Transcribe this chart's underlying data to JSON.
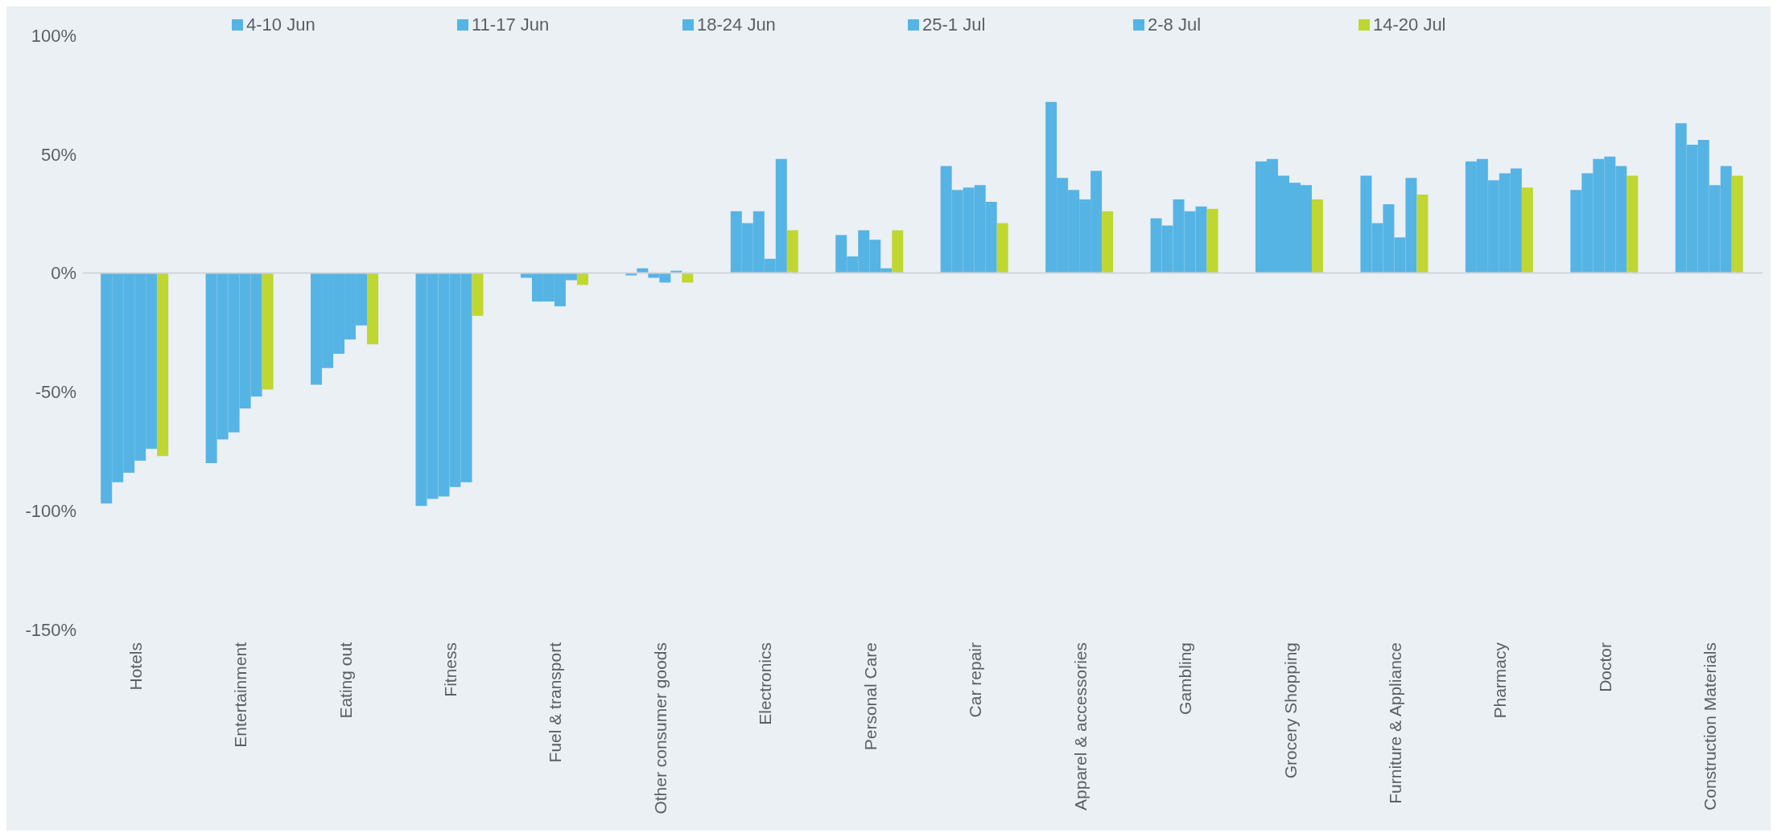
{
  "chart_data": {
    "type": "bar",
    "categories": [
      "Hotels",
      "Entertainment",
      "Eating out",
      "Fitness",
      "Fuel & transport",
      "Other consumer goods",
      "Electronics",
      "Personal Care",
      "Car repair",
      "Apparel & accessories",
      "Gambling",
      "Grocery Shopping",
      "Furniture & Appliance",
      "Pharmacy",
      "Doctor",
      "Construction Materials"
    ],
    "series": [
      {
        "name": "4-10 Jun",
        "color": "#56b4e5",
        "values": [
          -97,
          -80,
          -47,
          -98,
          -2,
          -1,
          26,
          16,
          45,
          72,
          23,
          47,
          41,
          47,
          35,
          63
        ]
      },
      {
        "name": "11-17 Jun",
        "color": "#56b4e5",
        "values": [
          -88,
          -70,
          -40,
          -95,
          -12,
          2,
          21,
          7,
          35,
          40,
          20,
          48,
          21,
          48,
          42,
          54
        ]
      },
      {
        "name": "18-24 Jun",
        "color": "#56b4e5",
        "values": [
          -84,
          -67,
          -34,
          -94,
          -12,
          -2,
          26,
          18,
          36,
          35,
          31,
          41,
          29,
          39,
          48,
          56
        ]
      },
      {
        "name": "25-1 Jul",
        "color": "#56b4e5",
        "values": [
          -79,
          -57,
          -28,
          -90,
          -14,
          -4,
          6,
          14,
          37,
          31,
          26,
          38,
          15,
          42,
          49,
          37
        ]
      },
      {
        "name": "2-8 Jul",
        "color": "#56b4e5",
        "values": [
          -74,
          -52,
          -22,
          -88,
          -3,
          1,
          48,
          2,
          30,
          43,
          28,
          37,
          40,
          44,
          45,
          45
        ]
      },
      {
        "name": "14-20 Jul",
        "color": "#bfd730",
        "values": [
          -77,
          -49,
          -30,
          -18,
          -5,
          -4,
          18,
          18,
          21,
          26,
          27,
          31,
          33,
          36,
          41,
          41
        ]
      }
    ],
    "ylim": [
      -150,
      100
    ],
    "yticks": [
      {
        "value": -150,
        "label": "-150%"
      },
      {
        "value": -100,
        "label": "-100%"
      },
      {
        "value": -50,
        "label": "-50%"
      },
      {
        "value": 0,
        "label": "0%"
      },
      {
        "value": 50,
        "label": "50%"
      },
      {
        "value": 100,
        "label": "100%"
      }
    ],
    "ref_lines": [
      {
        "axis": "y",
        "value": 0,
        "color": "#cfd5db"
      }
    ],
    "grid": false,
    "legend": "top"
  }
}
